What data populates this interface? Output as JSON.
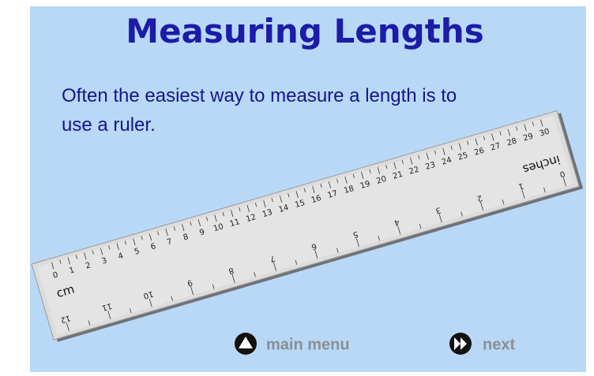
{
  "header": {
    "title": "Measuring Lengths"
  },
  "body": {
    "lines": [
      "Often the easiest way to measure a length is to",
      "use a ruler."
    ]
  },
  "ruler": {
    "cm_label": "cm",
    "cm_numbers": [
      0,
      1,
      2,
      3,
      4,
      5,
      6,
      7,
      8,
      9,
      10,
      11,
      12,
      13,
      14,
      15,
      16,
      17,
      18,
      19,
      20,
      21,
      22,
      23,
      24,
      25,
      26,
      27,
      28,
      29,
      30
    ],
    "inch_label": "inches",
    "inch_numbers": [
      0,
      1,
      2,
      3,
      4,
      5,
      6,
      7,
      8,
      9,
      10,
      11,
      12
    ]
  },
  "nav": {
    "main_menu": "main menu",
    "next": "next"
  }
}
